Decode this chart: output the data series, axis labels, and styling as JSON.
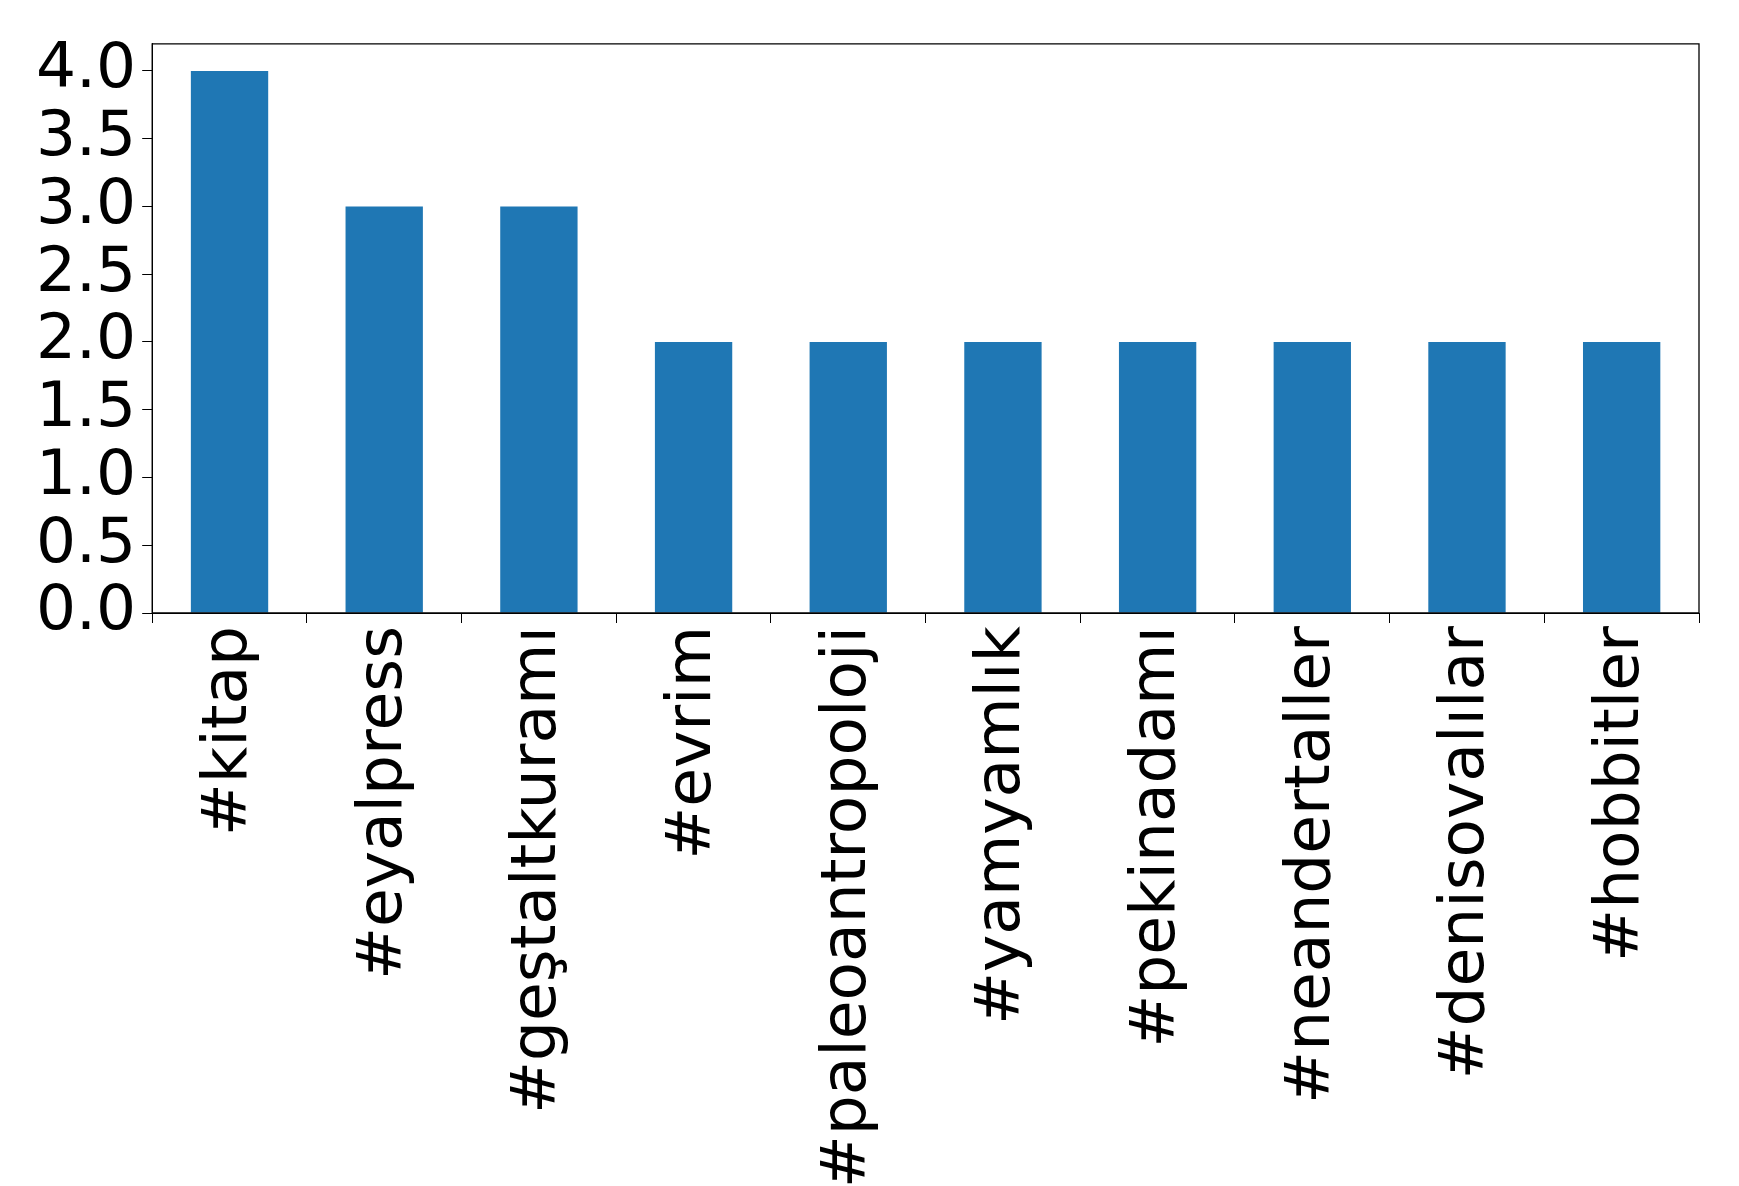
{
  "chart_data": {
    "type": "bar",
    "categories": [
      "#kitap",
      "#eyalpress",
      "#geştaltkuramı",
      "#evrim",
      "#paleoantropoloji",
      "#yamyamlık",
      "#pekinadamı",
      "#neandertaller",
      "#denisovalılar",
      "#hobbitler"
    ],
    "values": [
      4,
      3,
      3,
      2,
      2,
      2,
      2,
      2,
      2,
      2
    ],
    "color": "#1f77b4",
    "ylim": [
      0,
      4.2
    ],
    "yticks": [
      {
        "value": 0,
        "label": "0.0"
      },
      0.5,
      {
        "value": 1,
        "label": "1.0"
      },
      1.5,
      {
        "value": 2,
        "label": "2.0"
      },
      2.5,
      {
        "value": 3,
        "label": "3.0"
      },
      3.5,
      {
        "value": 4,
        "label": "4.0"
      }
    ],
    "grid": false
  }
}
